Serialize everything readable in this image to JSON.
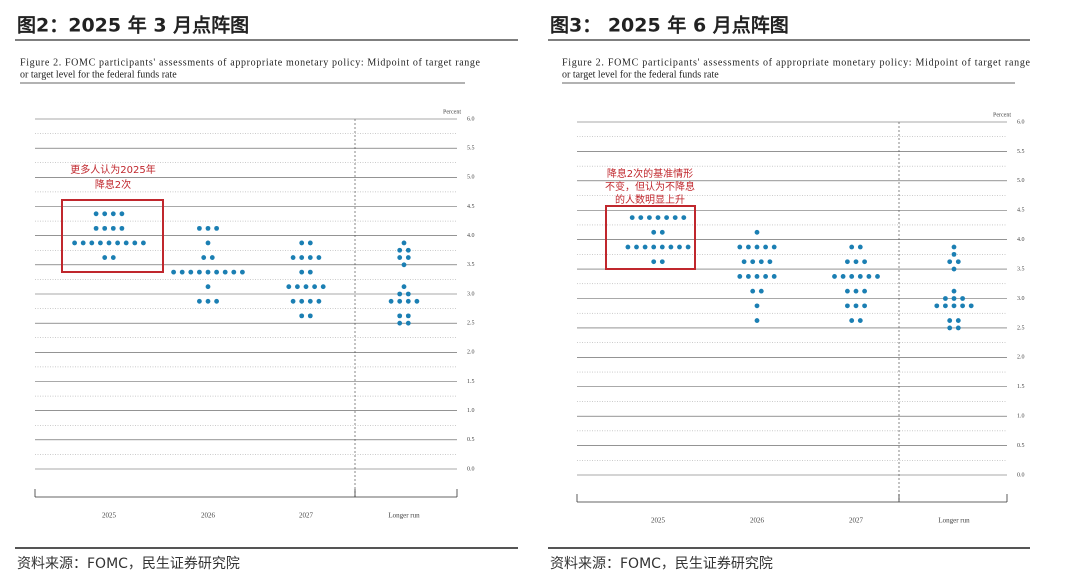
{
  "chart_data": [
    {
      "type": "dot",
      "title": "图2：2025 年 3 月点阵图",
      "subtitle": [
        "Figure 2.  FOMC participants' assessments of appropriate monetary policy:  Midpoint of target range",
        "or target level for the federal funds rate"
      ],
      "ylabel": "Percent",
      "annotation": [
        "更多人认为2025年",
        "降息2次"
      ],
      "source": "资料来源：FOMC，民生证券研究院",
      "categories": [
        "2025",
        "2026",
        "2027",
        "Longer run"
      ],
      "values": [
        [
          4.375,
          4.375,
          4.375,
          4.375,
          4.125,
          4.125,
          4.125,
          4.125,
          3.875,
          3.875,
          3.875,
          3.875,
          3.875,
          3.875,
          3.875,
          3.875,
          3.875,
          3.625,
          3.625
        ],
        [
          4.125,
          4.125,
          4.125,
          3.875,
          3.625,
          3.625,
          3.375,
          3.375,
          3.375,
          3.375,
          3.375,
          3.375,
          3.375,
          3.375,
          3.375,
          3.125,
          2.875,
          2.875,
          2.875
        ],
        [
          3.875,
          3.875,
          3.625,
          3.625,
          3.625,
          3.625,
          3.375,
          3.375,
          3.125,
          3.125,
          3.125,
          3.125,
          3.125,
          2.875,
          2.875,
          2.875,
          2.875,
          2.625,
          2.625
        ],
        [
          3.875,
          3.75,
          3.75,
          3.625,
          3.625,
          3.5,
          3.125,
          3.0,
          3.0,
          2.875,
          2.875,
          2.875,
          2.875,
          2.625,
          2.625,
          2.5,
          2.5
        ]
      ],
      "color": "#1b7fb3",
      "ylim": [
        0,
        6
      ],
      "yticks": [
        {
          "value": 0,
          "label": "0.0"
        },
        0.5,
        {
          "value": 1,
          "label": "1.0"
        },
        1.5,
        {
          "value": 2,
          "label": "2.0"
        },
        2.5,
        {
          "value": 3,
          "label": "3.0"
        },
        3.5,
        {
          "value": 4,
          "label": "4.0"
        },
        4.5,
        {
          "value": 5,
          "label": "5.0"
        },
        5.5,
        {
          "value": 6,
          "label": "6.0"
        }
      ],
      "grid": true
    },
    {
      "type": "dot",
      "title": "图3：  2025 年 6 月点阵图",
      "subtitle": [
        "Figure 2.  FOMC participants' assessments of appropriate monetary policy:  Midpoint of target range",
        "or target level for the federal funds rate"
      ],
      "ylabel": "Percent",
      "annotation": [
        "降息2次的基准情形",
        "不变，但认为不降息",
        "的人数明显上升"
      ],
      "source": "资料来源：FOMC，民生证券研究院",
      "categories": [
        "2025",
        "2026",
        "2027",
        "Longer run"
      ],
      "values": [
        [
          4.375,
          4.375,
          4.375,
          4.375,
          4.375,
          4.375,
          4.375,
          4.125,
          4.125,
          3.875,
          3.875,
          3.875,
          3.875,
          3.875,
          3.875,
          3.875,
          3.875,
          3.625,
          3.625
        ],
        [
          4.125,
          3.875,
          3.875,
          3.875,
          3.875,
          3.875,
          3.625,
          3.625,
          3.625,
          3.625,
          3.375,
          3.375,
          3.375,
          3.375,
          3.375,
          3.125,
          3.125,
          2.875,
          2.625
        ],
        [
          3.875,
          3.875,
          3.625,
          3.625,
          3.625,
          3.375,
          3.375,
          3.375,
          3.375,
          3.375,
          3.375,
          3.125,
          3.125,
          3.125,
          2.875,
          2.875,
          2.875,
          2.625,
          2.625
        ],
        [
          3.875,
          3.75,
          3.625,
          3.625,
          3.5,
          3.125,
          3.0,
          3.0,
          3.0,
          2.875,
          2.875,
          2.875,
          2.875,
          2.875,
          2.625,
          2.625,
          2.5,
          2.5
        ]
      ],
      "color": "#1b7fb3",
      "ylim": [
        0,
        6
      ],
      "yticks": [
        {
          "value": 0,
          "label": "0.0"
        },
        0.5,
        {
          "value": 1,
          "label": "1.0"
        },
        1.5,
        {
          "value": 2,
          "label": "2.0"
        },
        2.5,
        {
          "value": 3,
          "label": "3.0"
        },
        3.5,
        {
          "value": 4,
          "label": "4.0"
        },
        4.5,
        {
          "value": 5,
          "label": "5.0"
        },
        5.5,
        {
          "value": 6,
          "label": "6.0"
        }
      ],
      "grid": true
    }
  ]
}
